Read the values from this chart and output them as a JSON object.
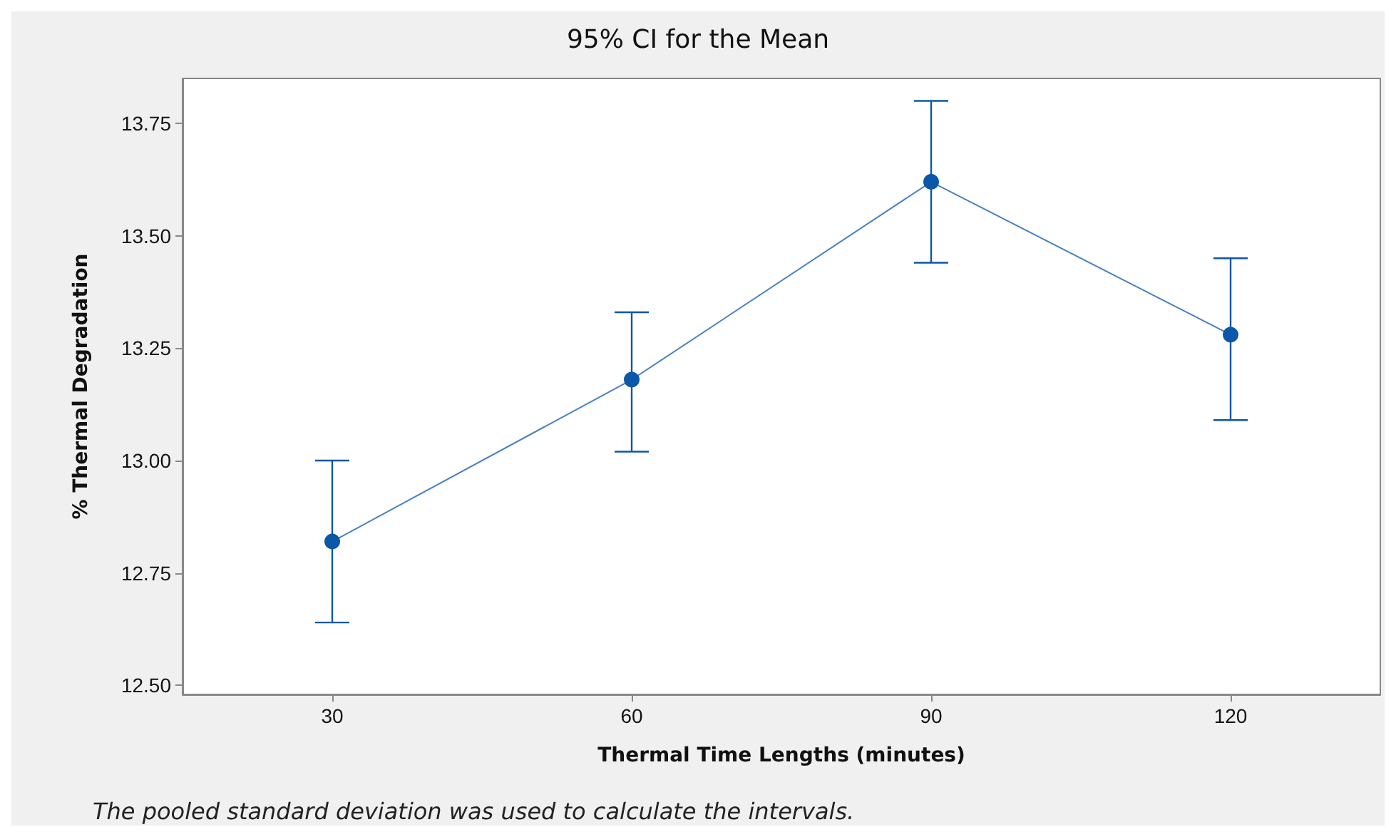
{
  "chart_data": {
    "type": "line",
    "title": "95% CI for the Mean",
    "xlabel": "Thermal Time Lengths (minutes)",
    "ylabel": "% Thermal Degradation",
    "categories": [
      "30",
      "60",
      "90",
      "120"
    ],
    "series": [
      {
        "color": "#0b57a8",
        "values": [
          12.82,
          13.18,
          13.62,
          13.28
        ],
        "errors": [
          [
            12.64,
            13.0
          ],
          [
            13.02,
            13.33
          ],
          [
            13.44,
            13.8
          ],
          [
            13.09,
            13.45
          ]
        ]
      }
    ],
    "ylim": [
      12.48,
      13.85
    ],
    "yticks": [
      {
        "value": 12.5,
        "label": "12.50"
      },
      12.75,
      {
        "value": 13,
        "label": "13.00"
      },
      13.25,
      {
        "value": 13.5,
        "label": "13.50"
      },
      13.75
    ],
    "grid": false,
    "marker": "circle",
    "line_style": "solid",
    "annotations": [
      "The pooled standard deviation was used to calculate the intervals."
    ]
  }
}
